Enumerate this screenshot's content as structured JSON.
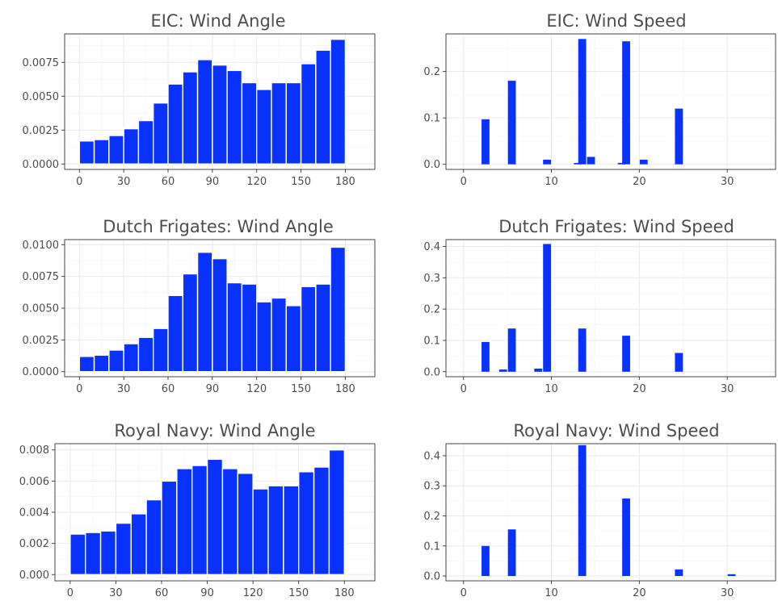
{
  "colors": {
    "bar": "#0a32ff",
    "panel_bg": "#ffffff",
    "grid": "#ebebeb"
  },
  "chart_data": [
    {
      "type": "bar",
      "title": "EIC: Wind Angle",
      "binwidth": 10,
      "x": [
        5,
        15,
        25,
        35,
        45,
        55,
        65,
        75,
        85,
        95,
        105,
        115,
        125,
        135,
        145,
        155,
        165,
        175
      ],
      "values": [
        0.0017,
        0.0018,
        0.0021,
        0.0026,
        0.0032,
        0.0045,
        0.0059,
        0.0068,
        0.0077,
        0.0073,
        0.0069,
        0.006,
        0.0055,
        0.006,
        0.006,
        0.0074,
        0.0084,
        0.0092
      ],
      "xlim": [
        -10,
        200
      ],
      "ylim": [
        -0.0004,
        0.0096
      ],
      "x_ticks": [
        0,
        30,
        60,
        90,
        120,
        150,
        180
      ],
      "x_tick_labels": [
        "0",
        "30",
        "60",
        "90",
        "120",
        "150",
        "180"
      ],
      "y_ticks": [
        0,
        0.0025,
        0.005,
        0.0075
      ],
      "y_tick_labels": [
        "0.0000",
        "0.0025",
        "0.0050",
        "0.0075"
      ],
      "xlabel": "",
      "ylabel": "",
      "grid": true
    },
    {
      "type": "bar",
      "title": "EIC: Wind Speed",
      "binwidth": 0.9,
      "x": [
        2.5,
        5.5,
        9.5,
        13.0,
        13.5,
        14.5,
        18.0,
        18.5,
        20.5,
        24.5
      ],
      "values": [
        0.097,
        0.18,
        0.01,
        0.003,
        0.27,
        0.016,
        0.003,
        0.265,
        0.01,
        0.12
      ],
      "xlim": [
        -2,
        35.5
      ],
      "ylim": [
        -0.011,
        0.281
      ],
      "x_ticks": [
        0,
        10,
        20,
        30
      ],
      "x_tick_labels": [
        "0",
        "10",
        "20",
        "30"
      ],
      "y_ticks": [
        0,
        0.1,
        0.2
      ],
      "y_tick_labels": [
        "0.0",
        "0.1",
        "0.2"
      ],
      "xlabel": "",
      "ylabel": "",
      "grid": true
    },
    {
      "type": "bar",
      "title": "Dutch Frigates: Wind Angle",
      "binwidth": 10,
      "x": [
        5,
        15,
        25,
        35,
        45,
        55,
        65,
        75,
        85,
        95,
        105,
        115,
        125,
        135,
        145,
        155,
        165,
        175
      ],
      "values": [
        0.0012,
        0.0013,
        0.0017,
        0.0022,
        0.0027,
        0.0034,
        0.006,
        0.0077,
        0.0094,
        0.0089,
        0.007,
        0.0069,
        0.0055,
        0.0058,
        0.0052,
        0.0067,
        0.0069,
        0.0098
      ],
      "xlim": [
        -10,
        200
      ],
      "ylim": [
        -0.0004,
        0.0104
      ],
      "x_ticks": [
        0,
        30,
        60,
        90,
        120,
        150,
        180
      ],
      "x_tick_labels": [
        "0",
        "30",
        "60",
        "90",
        "120",
        "150",
        "180"
      ],
      "y_ticks": [
        0,
        0.0025,
        0.005,
        0.0075,
        0.01
      ],
      "y_tick_labels": [
        "0.0000",
        "0.0025",
        "0.0050",
        "0.0075",
        "0.0100"
      ],
      "xlabel": "",
      "ylabel": "",
      "grid": true
    },
    {
      "type": "bar",
      "title": "Dutch Frigates: Wind Speed",
      "binwidth": 0.9,
      "x": [
        2.5,
        4.5,
        5.5,
        8.5,
        9.5,
        13.5,
        18.5,
        24.5
      ],
      "values": [
        0.095,
        0.007,
        0.138,
        0.01,
        0.408,
        0.138,
        0.115,
        0.06
      ],
      "xlim": [
        -2,
        35.5
      ],
      "ylim": [
        -0.016,
        0.422
      ],
      "x_ticks": [
        0,
        10,
        20,
        30
      ],
      "x_tick_labels": [
        "0",
        "10",
        "20",
        "30"
      ],
      "y_ticks": [
        0,
        0.1,
        0.2,
        0.3,
        0.4
      ],
      "y_tick_labels": [
        "0.0",
        "0.1",
        "0.2",
        "0.3",
        "0.4"
      ],
      "xlabel": "",
      "ylabel": "",
      "grid": true
    },
    {
      "type": "bar",
      "title": "Royal Navy: Wind Angle",
      "binwidth": 10,
      "x": [
        5,
        15,
        25,
        35,
        45,
        55,
        65,
        75,
        85,
        95,
        105,
        115,
        125,
        135,
        145,
        155,
        165,
        175
      ],
      "values": [
        0.0026,
        0.0027,
        0.0028,
        0.0033,
        0.0039,
        0.0048,
        0.006,
        0.0068,
        0.007,
        0.0074,
        0.0068,
        0.0065,
        0.0055,
        0.0057,
        0.0057,
        0.0066,
        0.0069,
        0.008
      ],
      "xlim": [
        -10,
        200
      ],
      "ylim": [
        -0.0004,
        0.0084
      ],
      "x_ticks": [
        0,
        30,
        60,
        90,
        120,
        150,
        180
      ],
      "x_tick_labels": [
        "0",
        "30",
        "60",
        "90",
        "120",
        "150",
        "180"
      ],
      "y_ticks": [
        0,
        0.002,
        0.004,
        0.006,
        0.008
      ],
      "y_tick_labels": [
        "0.000",
        "0.002",
        "0.004",
        "0.006",
        "0.008"
      ],
      "xlabel": "",
      "ylabel": "",
      "grid": true
    },
    {
      "type": "bar",
      "title": "Royal Navy: Wind Speed",
      "binwidth": 0.9,
      "x": [
        2.5,
        5.5,
        13.5,
        18.5,
        24.5,
        30.5
      ],
      "values": [
        0.1,
        0.155,
        0.435,
        0.258,
        0.022,
        0.006
      ],
      "xlim": [
        -2,
        35.5
      ],
      "ylim": [
        -0.016,
        0.44
      ],
      "x_ticks": [
        0,
        10,
        20,
        30
      ],
      "x_tick_labels": [
        "0",
        "10",
        "20",
        "30"
      ],
      "y_ticks": [
        0,
        0.1,
        0.2,
        0.3,
        0.4
      ],
      "y_tick_labels": [
        "0.0",
        "0.1",
        "0.2",
        "0.3",
        "0.4"
      ],
      "xlabel": "",
      "ylabel": "",
      "grid": true
    }
  ]
}
